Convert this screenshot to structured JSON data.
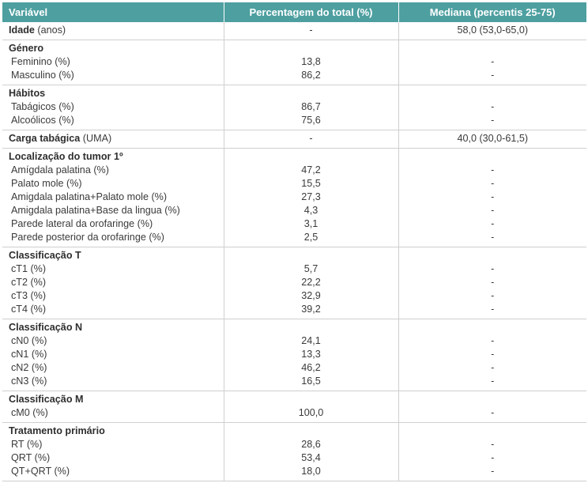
{
  "header": {
    "col1": "Variável",
    "col2": "Percentagem do total (%)",
    "col3": "Mediana (percentis 25-75)"
  },
  "sections": [
    {
      "title": "Idade",
      "title_suffix": " (anos)",
      "inline": true,
      "pct": "-",
      "median": "58,0 (53,0-65,0)",
      "rows": []
    },
    {
      "title": "Género",
      "rows": [
        {
          "label": "Feminino (%)",
          "pct": "13,8",
          "median": "-"
        },
        {
          "label": "Masculino (%)",
          "pct": "86,2",
          "median": "-"
        }
      ]
    },
    {
      "title": "Hábitos",
      "rows": [
        {
          "label": "Tabágicos (%)",
          "pct": "86,7",
          "median": "-"
        },
        {
          "label": "Alcoólicos (%)",
          "pct": "75,6",
          "median": "-"
        }
      ]
    },
    {
      "title": "Carga tabágica",
      "title_suffix": " (UMA)",
      "inline": true,
      "pct": "-",
      "median": "40,0 (30,0-61,5)",
      "rows": []
    },
    {
      "title": "Localização do tumor 1º",
      "rows": [
        {
          "label": "Amígdala palatina (%)",
          "pct": "47,2",
          "median": "-"
        },
        {
          "label": "Palato mole (%)",
          "pct": "15,5",
          "median": "-"
        },
        {
          "label": "Amigdala palatina+Palato mole (%)",
          "pct": "27,3",
          "median": "-"
        },
        {
          "label": "Amigdala palatina+Base da lingua (%)",
          "pct": "4,3",
          "median": "-"
        },
        {
          "label": "Parede lateral da orofaringe (%)",
          "pct": "3,1",
          "median": "-"
        },
        {
          "label": "Parede posterior da orofaringe (%)",
          "pct": "2,5",
          "median": "-"
        }
      ]
    },
    {
      "title": "Classificação T",
      "rows": [
        {
          "label": "cT1 (%)",
          "pct": "5,7",
          "median": "-"
        },
        {
          "label": "cT2 (%)",
          "pct": "22,2",
          "median": "-"
        },
        {
          "label": "cT3 (%)",
          "pct": "32,9",
          "median": "-"
        },
        {
          "label": "cT4 (%)",
          "pct": "39,2",
          "median": "-"
        }
      ]
    },
    {
      "title": "Classificação N",
      "rows": [
        {
          "label": "cN0 (%)",
          "pct": "24,1",
          "median": "-"
        },
        {
          "label": "cN1 (%)",
          "pct": "13,3",
          "median": "-"
        },
        {
          "label": "cN2 (%)",
          "pct": "46,2",
          "median": "-"
        },
        {
          "label": "cN3 (%)",
          "pct": "16,5",
          "median": "-"
        }
      ]
    },
    {
      "title": "Classificação M",
      "rows": [
        {
          "label": "cM0 (%)",
          "pct": "100,0",
          "median": "-"
        }
      ]
    },
    {
      "title": "Tratamento primário",
      "rows": [
        {
          "label": "RT (%)",
          "pct": "28,6",
          "median": "-"
        },
        {
          "label": "QRT (%)",
          "pct": "53,4",
          "median": "-"
        },
        {
          "label": "QT+QRT (%)",
          "pct": "18,0",
          "median": "-"
        }
      ]
    }
  ]
}
